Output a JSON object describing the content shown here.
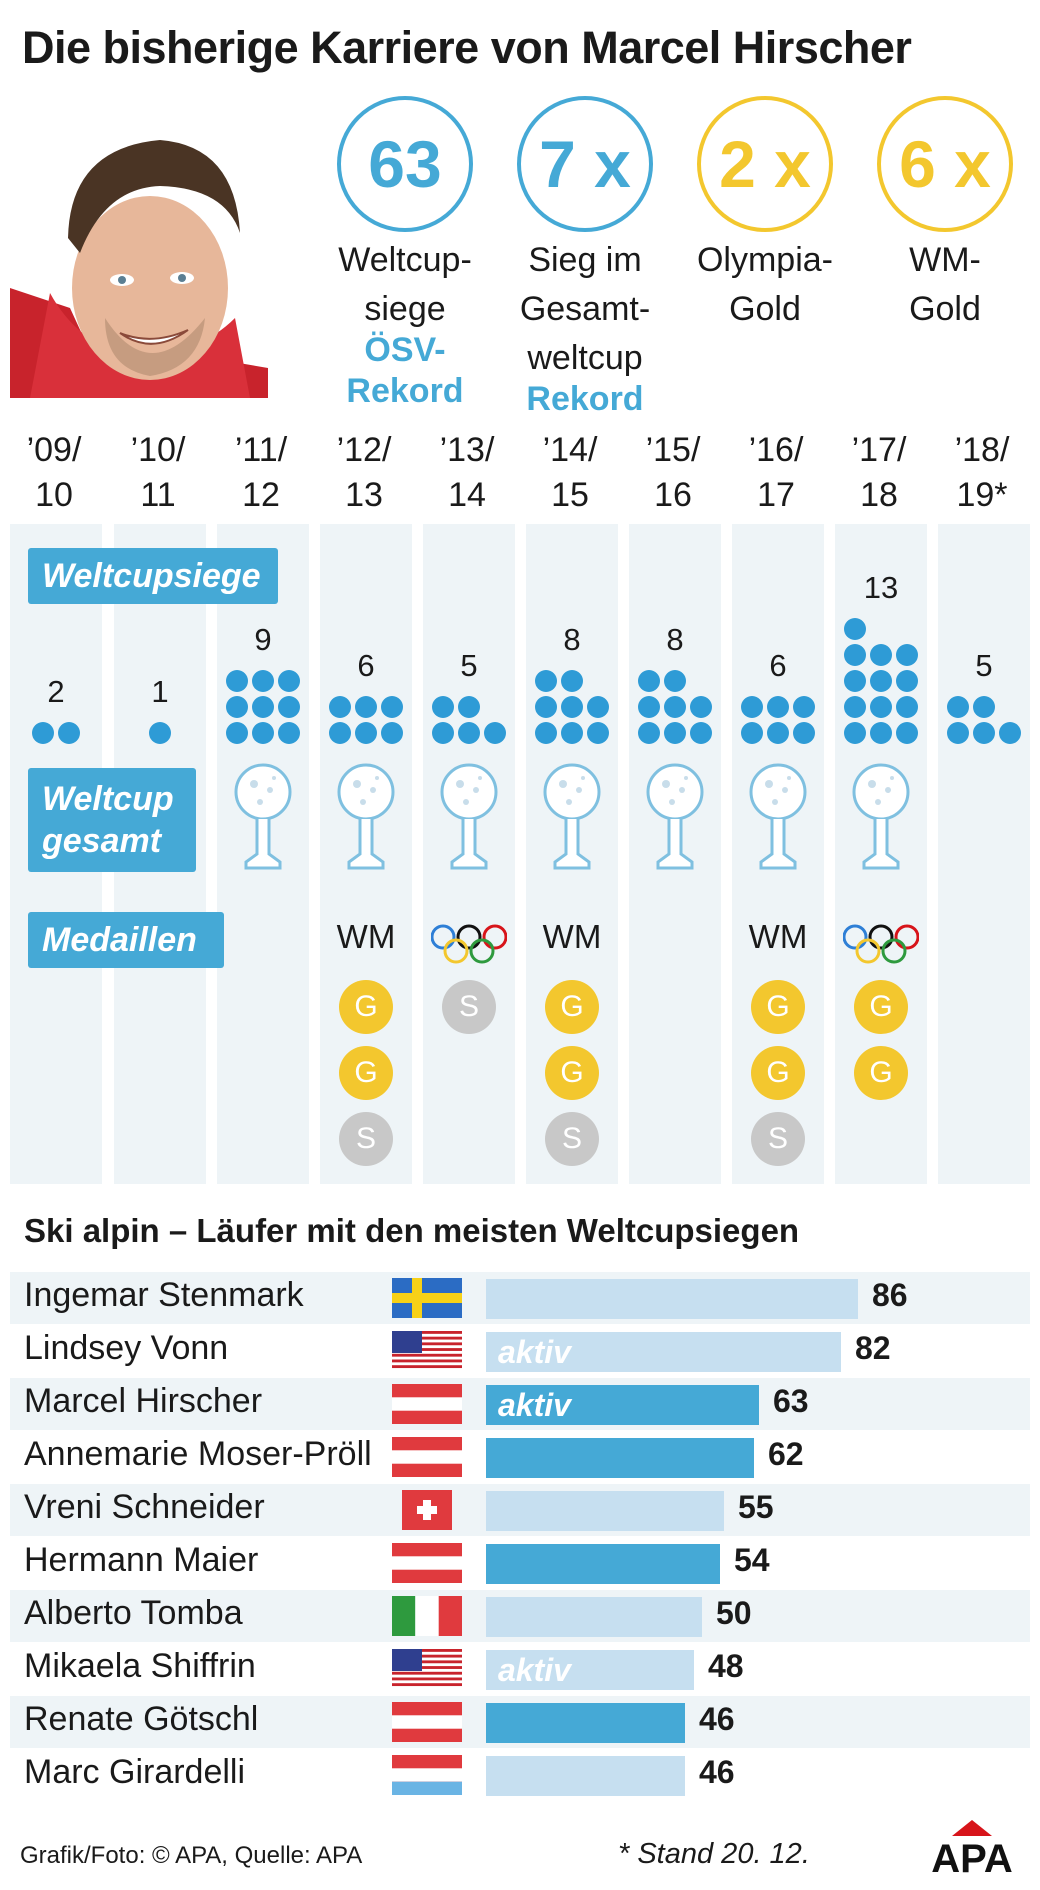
{
  "title": "Die bisherige Karriere von Marcel Hirscher",
  "stats": [
    {
      "value": "63",
      "label1": "Weltcup-",
      "label2": "siege",
      "record1": "ÖSV-",
      "record2": "Rekord",
      "color": "#45a9d6"
    },
    {
      "value": "7 x",
      "label1": "Sieg im",
      "label2": "Gesamt-",
      "label3": "weltcup",
      "record1": "Rekord",
      "color": "#45a9d6"
    },
    {
      "value": "2 x",
      "label1": "Olympia-",
      "label2": "Gold",
      "color": "#f3c72e"
    },
    {
      "value": "6 x",
      "label1": "WM-",
      "label2": "Gold",
      "color": "#f3c72e"
    }
  ],
  "seasons": [
    {
      "l1": "’09/",
      "l2": "10"
    },
    {
      "l1": "’10/",
      "l2": "11"
    },
    {
      "l1": "’11/",
      "l2": "12"
    },
    {
      "l1": "’12/",
      "l2": "13"
    },
    {
      "l1": "’13/",
      "l2": "14"
    },
    {
      "l1": "’14/",
      "l2": "15"
    },
    {
      "l1": "’15/",
      "l2": "16"
    },
    {
      "l1": "’16/",
      "l2": "17"
    },
    {
      "l1": "’17/",
      "l2": "18"
    },
    {
      "l1": "’18/",
      "l2": "19*"
    }
  ],
  "labels": {
    "wins": "Weltcupsiege",
    "overall1": "Weltcup",
    "overall2": "gesamt",
    "medals": "Medaillen",
    "wm": "WM"
  },
  "season_chart": {
    "wins": [
      2,
      1,
      9,
      6,
      5,
      8,
      8,
      6,
      13,
      5
    ],
    "overall_title": [
      false,
      false,
      true,
      true,
      true,
      true,
      true,
      true,
      true,
      false
    ],
    "medal_event": [
      "",
      "",
      "",
      "WM",
      "Olympia",
      "WM",
      "",
      "WM",
      "Olympia",
      ""
    ],
    "medals": [
      [],
      [],
      [],
      [
        "G",
        "G",
        "S"
      ],
      [
        "S"
      ],
      [
        "G",
        "G",
        "S"
      ],
      [],
      [
        "G",
        "G",
        "S"
      ],
      [
        "G",
        "G"
      ],
      []
    ]
  },
  "ranking_title": "Ski alpin – Läufer mit den meisten Weltcupsiegen",
  "chart_data": {
    "type": "bar",
    "title": "Ski alpin – Läufer mit den meisten Weltcupsiegen",
    "categories": [
      "Ingemar Stenmark",
      "Lindsey Vonn",
      "Marcel Hirscher",
      "Annemarie Moser-Pröll",
      "Vreni Schneider",
      "Hermann Maier",
      "Alberto Tomba",
      "Mikaela Shiffrin",
      "Renate Götschl",
      "Marc Girardelli"
    ],
    "values": [
      86,
      82,
      63,
      62,
      55,
      54,
      50,
      48,
      46,
      46
    ],
    "flags": [
      "sweden",
      "usa",
      "austria",
      "austria",
      "switzerland",
      "austria",
      "italy",
      "usa",
      "austria",
      "luxembourg"
    ],
    "active": [
      "",
      "aktiv",
      "aktiv",
      "",
      "",
      "",
      "",
      "aktiv",
      "",
      ""
    ],
    "bar_colors": [
      "#c6dff0",
      "#c6dff0",
      "#45a9d6",
      "#45a9d6",
      "#c6dff0",
      "#45a9d6",
      "#c6dff0",
      "#c6dff0",
      "#45a9d6",
      "#c6dff0"
    ]
  },
  "footer": {
    "credit": "Grafik/Foto: © APA, Quelle: APA",
    "note": "* Stand 20. 12.",
    "logo": "APA"
  }
}
